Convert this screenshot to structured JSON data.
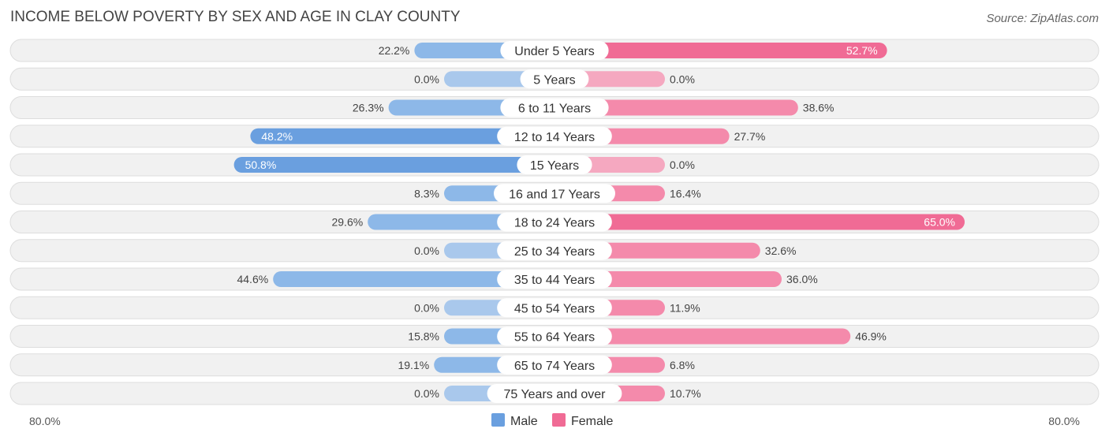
{
  "chart_data": {
    "type": "bar",
    "orientation": "horizontal-diverging",
    "title": "INCOME BELOW POVERTY BY SEX AND AGE IN CLAY COUNTY",
    "source": "Source: ZipAtlas.com",
    "categories": [
      "Under 5 Years",
      "5 Years",
      "6 to 11 Years",
      "12 to 14 Years",
      "15 Years",
      "16 and 17 Years",
      "18 to 24 Years",
      "25 to 34 Years",
      "35 to 44 Years",
      "45 to 54 Years",
      "55 to 64 Years",
      "65 to 74 Years",
      "75 Years and over"
    ],
    "series": [
      {
        "name": "Male",
        "values": [
          22.2,
          0.0,
          26.3,
          48.2,
          50.8,
          8.3,
          29.6,
          0.0,
          44.6,
          0.0,
          15.8,
          19.1,
          0.0
        ],
        "labels": [
          "22.2%",
          "0.0%",
          "26.3%",
          "48.2%",
          "50.8%",
          "8.3%",
          "29.6%",
          "0.0%",
          "44.6%",
          "0.0%",
          "15.8%",
          "19.1%",
          "0.0%"
        ]
      },
      {
        "name": "Female",
        "values": [
          52.7,
          0.0,
          38.6,
          27.7,
          0.0,
          16.4,
          65.0,
          32.6,
          36.0,
          11.9,
          46.9,
          6.8,
          10.7
        ],
        "labels": [
          "52.7%",
          "0.0%",
          "38.6%",
          "27.7%",
          "0.0%",
          "16.4%",
          "65.0%",
          "32.6%",
          "36.0%",
          "11.9%",
          "46.9%",
          "6.8%",
          "10.7%"
        ]
      }
    ],
    "axis": {
      "left_label": "80.0%",
      "right_label": "80.0%",
      "max": 80.0
    },
    "legend": {
      "position": "bottom-center",
      "items": [
        "Male",
        "Female"
      ]
    },
    "colors": {
      "male_strong": "#6a9fdf",
      "male_light": "#a9c8ec",
      "female_strong": "#f06b95",
      "female_light": "#f5a8c0",
      "row_bg": "#f1f1f1",
      "row_border": "#dddddd"
    }
  }
}
